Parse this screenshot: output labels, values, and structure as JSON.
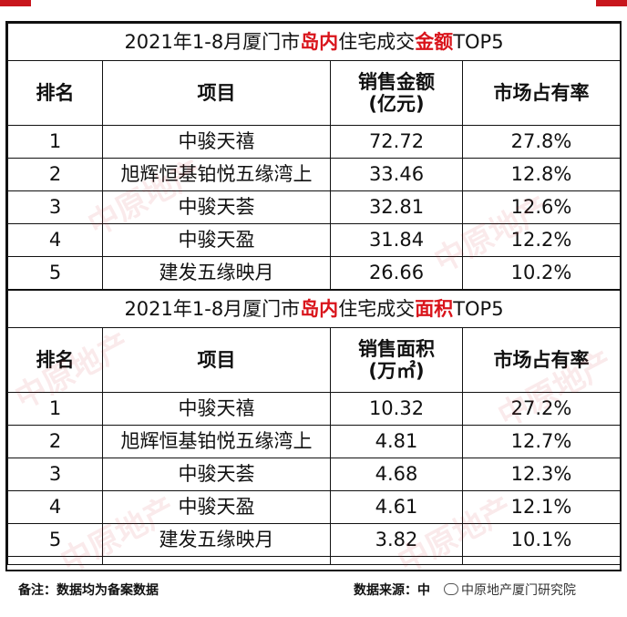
{
  "amount_table": {
    "title_pre": "2021年1-8月厦门市",
    "title_highlight1": "岛内",
    "title_mid": "住宅成交",
    "title_highlight2": "金额",
    "title_post": "TOP5",
    "headers": [
      "排名",
      "项目",
      "销售金额\n(亿元)",
      "市场占有率"
    ],
    "rows": [
      {
        "rank": "1",
        "project": "中骏天禧",
        "value": "72.72",
        "share": "27.8%"
      },
      {
        "rank": "2",
        "project": "旭辉恒基铂悦五缘湾上",
        "value": "33.46",
        "share": "12.8%"
      },
      {
        "rank": "3",
        "project": "中骏天荟",
        "value": "32.81",
        "share": "12.6%"
      },
      {
        "rank": "4",
        "project": "中骏天盈",
        "value": "31.84",
        "share": "12.2%"
      },
      {
        "rank": "5",
        "project": "建发五缘映月",
        "value": "26.66",
        "share": "10.2%"
      }
    ]
  },
  "area_table": {
    "title_pre": "2021年1-8月厦门市",
    "title_highlight1": "岛内",
    "title_mid": "住宅成交",
    "title_highlight2": "面积",
    "title_post": "TOP5",
    "headers": [
      "排名",
      "项目",
      "销售面积\n(万㎡)",
      "市场占有率"
    ],
    "rows": [
      {
        "rank": "1",
        "project": "中骏天禧",
        "value": "10.32",
        "share": "27.2%"
      },
      {
        "rank": "2",
        "project": "旭辉恒基铂悦五缘湾上",
        "value": "4.81",
        "share": "12.7%"
      },
      {
        "rank": "3",
        "project": "中骏天荟",
        "value": "4.68",
        "share": "12.3%"
      },
      {
        "rank": "4",
        "project": "中骏天盈",
        "value": "4.61",
        "share": "12.1%"
      },
      {
        "rank": "5",
        "project": "建发五缘映月",
        "value": "3.82",
        "share": "10.1%"
      }
    ]
  },
  "footer": {
    "note": "备注：数据均为备案数据",
    "source": "数据来源：中",
    "wechat": "中原地产厦门研究院"
  },
  "watermark_text": "中原地产",
  "colors": {
    "accent_red": "#d9141b",
    "corner_red": "#c8161d"
  }
}
